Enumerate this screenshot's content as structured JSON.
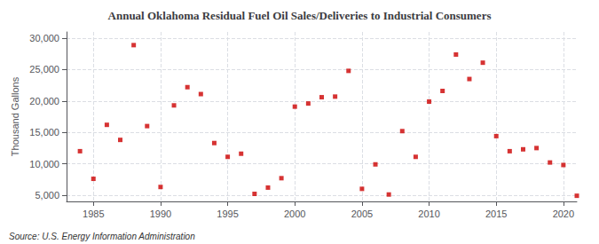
{
  "chart_data": {
    "type": "scatter",
    "title": "Annual Oklahoma Residual Fuel Oil Sales/Deliveries to Industrial Consumers",
    "ylabel": "Thousand Gallons",
    "annotations": [
      "Source: U.S. Energy Information Administration"
    ],
    "color": "#cc0000",
    "marker": "square",
    "grid": true,
    "xlim": [
      1983,
      2021
    ],
    "ylim": [
      4000,
      31000
    ],
    "xticks": [
      1985,
      1990,
      1995,
      2000,
      2005,
      2010,
      2015,
      2020
    ],
    "yticks": [
      {
        "value": 5000,
        "label": "5,000"
      },
      {
        "value": 10000,
        "label": "10,000"
      },
      {
        "value": 15000,
        "label": "15,000"
      },
      {
        "value": 20000,
        "label": "20,000"
      },
      {
        "value": 25000,
        "label": "25,000"
      },
      {
        "value": 30000,
        "label": "30,000"
      }
    ],
    "x": [
      1984,
      1985,
      1986,
      1987,
      1988,
      1989,
      1990,
      1991,
      1992,
      1993,
      1994,
      1995,
      1996,
      1997,
      1998,
      1999,
      2000,
      2001,
      2002,
      2003,
      2004,
      2005,
      2006,
      2007,
      2008,
      2009,
      2010,
      2011,
      2012,
      2013,
      2014,
      2015,
      2016,
      2017,
      2018,
      2019,
      2020,
      2021
    ],
    "values": [
      12000,
      7600,
      16200,
      13800,
      28900,
      16000,
      6300,
      19300,
      22200,
      21100,
      13300,
      11100,
      11600,
      5200,
      6200,
      7700,
      19100,
      19600,
      20600,
      20700,
      24800,
      6000,
      9900,
      5100,
      15200,
      11100,
      19900,
      21600,
      27400,
      23500,
      26100,
      14400,
      12000,
      12300,
      12500,
      10200,
      9800,
      4900
    ]
  }
}
